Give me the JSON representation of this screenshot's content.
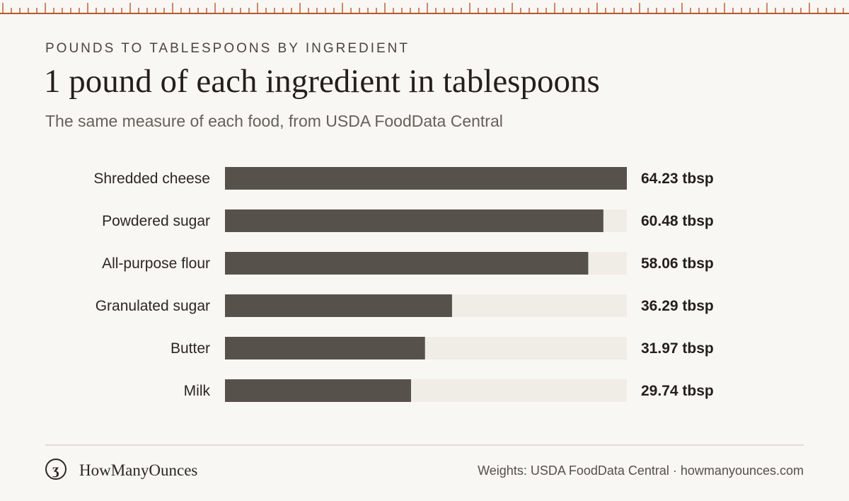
{
  "header": {
    "eyebrow": "POUNDS TO TABLESPOONS BY INGREDIENT",
    "title": "1 pound of each ingredient in tablespoons",
    "subtitle": "The same measure of each food, from USDA FoodData Central"
  },
  "colors": {
    "bar": "#57514b",
    "track": "#f0ede6",
    "ruler": "#b8572f",
    "background": "#f8f7f3"
  },
  "chart_data": {
    "type": "bar",
    "orientation": "horizontal",
    "categories": [
      "Shredded cheese",
      "Powdered sugar",
      "All-purpose flour",
      "Granulated sugar",
      "Butter",
      "Milk"
    ],
    "values": [
      64.23,
      60.48,
      58.06,
      36.29,
      31.97,
      29.74
    ],
    "value_labels": [
      "64.23 tbsp",
      "60.48 tbsp",
      "58.06 tbsp",
      "36.29 tbsp",
      "31.97 tbsp",
      "29.74 tbsp"
    ],
    "unit": "tbsp",
    "xlim": [
      0,
      64.23
    ],
    "grid": false,
    "legend": "none"
  },
  "footer": {
    "logo_icon": "ounce-symbol-icon",
    "logo_glyph": "ʒ",
    "brand": "HowManyOunces",
    "source": "Weights: USDA FoodData Central · howmanyounces.com"
  }
}
